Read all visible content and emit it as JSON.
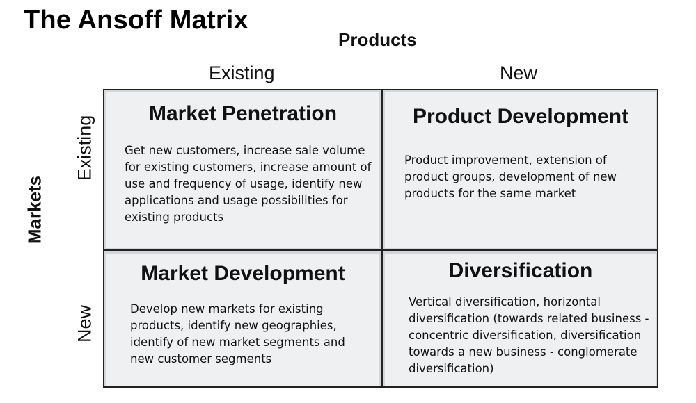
{
  "title": "The Ansoff Matrix",
  "axes": {
    "products": "Products",
    "markets": "Markets",
    "columns": [
      "Existing",
      "New"
    ],
    "rows": [
      "Existing",
      "New"
    ]
  },
  "quadrants": {
    "market_penetration": {
      "title": "Market Penetration",
      "description": "Get new customers, increase sale volume for existing customers, increase amount of use and frequency of usage, identify new applications and usage possibilities for existing products"
    },
    "product_development": {
      "title": "Product Development",
      "description": "Product improvement, extension of product groups, development of new products for the same market"
    },
    "market_development": {
      "title": "Market Development",
      "description": "Develop new markets for existing products, identify new geographies, identify of new market segments and new customer segments"
    },
    "diversification": {
      "title": "Diversification",
      "description": "Vertical diversification, horizontal diversification (towards related business - concentric diversification, diversification towards a new business - conglomerate diversification)"
    }
  },
  "colors": {
    "cell_fill": "#eef0f2",
    "grid_line": "#222222",
    "text": "#111111"
  }
}
